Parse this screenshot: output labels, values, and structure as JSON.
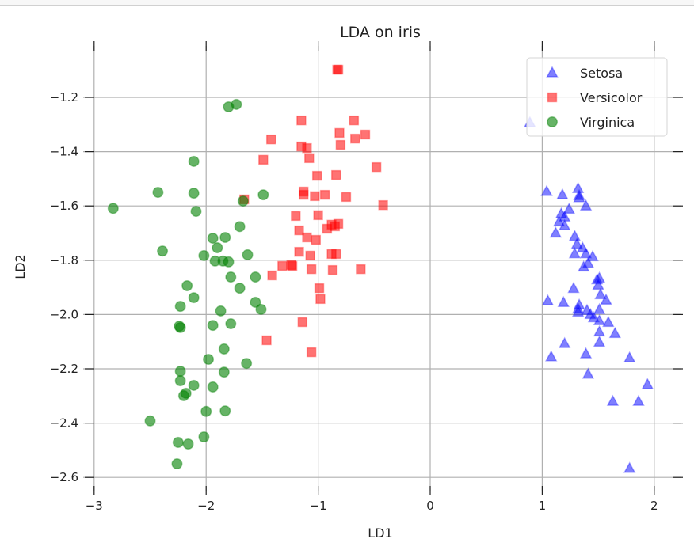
{
  "chart_data": {
    "type": "scatter",
    "title": "LDA on iris",
    "xlabel": "LD1",
    "ylabel": "LD2",
    "xlim": [
      -3.1,
      2.24
    ],
    "ylim": [
      -2.65,
      -1.01
    ],
    "xticks": [
      -3,
      -2,
      -1,
      0,
      1,
      2
    ],
    "xtick_labels": [
      "−3",
      "−2",
      "−1",
      "0",
      "1",
      "2"
    ],
    "yticks": [
      -1.2,
      -1.4,
      -1.6,
      -1.8,
      -2.0,
      -2.2,
      -2.4,
      -2.6
    ],
    "ytick_labels": [
      "−1.2",
      "−1.4",
      "−1.6",
      "−1.8",
      "−2.0",
      "−2.2",
      "−2.4",
      "−2.6"
    ],
    "grid": true,
    "legend_position": "top-right",
    "series": [
      {
        "name": "Setosa",
        "marker": "triangle",
        "color": "#0000ff",
        "alpha": 0.5,
        "points": [
          [
            1.04,
            -1.547
          ],
          [
            1.18,
            -1.559
          ],
          [
            1.32,
            -1.536
          ],
          [
            1.33,
            -1.562
          ],
          [
            1.39,
            -1.6
          ],
          [
            1.17,
            -1.629
          ],
          [
            1.24,
            -1.612
          ],
          [
            1.2,
            -1.641
          ],
          [
            1.15,
            -1.659
          ],
          [
            1.2,
            -1.673
          ],
          [
            1.12,
            -1.7
          ],
          [
            1.29,
            -1.712
          ],
          [
            1.31,
            -1.741
          ],
          [
            1.36,
            -1.755
          ],
          [
            1.39,
            -1.776
          ],
          [
            1.45,
            -1.787
          ],
          [
            1.29,
            -1.776
          ],
          [
            1.41,
            -1.811
          ],
          [
            1.37,
            -1.825
          ],
          [
            1.51,
            -1.866
          ],
          [
            1.49,
            -1.872
          ],
          [
            1.5,
            -1.892
          ],
          [
            1.28,
            -1.904
          ],
          [
            1.52,
            -1.927
          ],
          [
            1.05,
            -1.95
          ],
          [
            1.19,
            -1.956
          ],
          [
            1.33,
            -1.965
          ],
          [
            1.32,
            -1.991
          ],
          [
            1.57,
            -1.947
          ],
          [
            1.51,
            -1.982
          ],
          [
            1.4,
            -1.985
          ],
          [
            1.43,
            -2.0
          ],
          [
            1.46,
            -2.012
          ],
          [
            1.51,
            -2.023
          ],
          [
            1.59,
            -2.029
          ],
          [
            1.51,
            -2.064
          ],
          [
            1.2,
            -2.107
          ],
          [
            1.39,
            -2.145
          ],
          [
            1.51,
            -2.102
          ],
          [
            1.65,
            -2.07
          ],
          [
            1.08,
            -2.156
          ],
          [
            1.78,
            -2.16
          ],
          [
            1.41,
            -2.22
          ],
          [
            1.94,
            -2.258
          ],
          [
            1.63,
            -2.32
          ],
          [
            1.86,
            -2.32
          ],
          [
            1.78,
            -2.567
          ],
          [
            0.89,
            -1.293
          ],
          [
            1.33,
            -1.57
          ],
          [
            1.32,
            -1.98
          ]
        ]
      },
      {
        "name": "Versicolor",
        "marker": "square",
        "color": "#ff0000",
        "alpha": 0.55,
        "points": [
          [
            -0.82,
            -1.098
          ],
          [
            -0.83,
            -1.098
          ],
          [
            -1.15,
            -1.285
          ],
          [
            -0.68,
            -1.285
          ],
          [
            -0.81,
            -1.331
          ],
          [
            -0.58,
            -1.337
          ],
          [
            -1.15,
            -1.381
          ],
          [
            -0.8,
            -1.375
          ],
          [
            -0.67,
            -1.352
          ],
          [
            -1.1,
            -1.387
          ],
          [
            -1.49,
            -1.43
          ],
          [
            -1.08,
            -1.424
          ],
          [
            -0.48,
            -1.457
          ],
          [
            -1.01,
            -1.489
          ],
          [
            -1.42,
            -1.355
          ],
          [
            -0.84,
            -1.486
          ],
          [
            -0.94,
            -1.559
          ],
          [
            -1.13,
            -1.547
          ],
          [
            -1.13,
            -1.559
          ],
          [
            -1.03,
            -1.564
          ],
          [
            -0.75,
            -1.567
          ],
          [
            -0.42,
            -1.597
          ],
          [
            -1.66,
            -1.576
          ],
          [
            -1.2,
            -1.637
          ],
          [
            -1.17,
            -1.69
          ],
          [
            -1.0,
            -1.634
          ],
          [
            -0.92,
            -1.684
          ],
          [
            -0.82,
            -1.666
          ],
          [
            -0.88,
            -1.669
          ],
          [
            -0.85,
            -1.675
          ],
          [
            -1.1,
            -1.716
          ],
          [
            -1.02,
            -1.725
          ],
          [
            -1.17,
            -1.769
          ],
          [
            -1.24,
            -1.818
          ],
          [
            -1.23,
            -1.821
          ],
          [
            -1.07,
            -1.783
          ],
          [
            -0.88,
            -1.777
          ],
          [
            -0.84,
            -1.777
          ],
          [
            -1.06,
            -1.833
          ],
          [
            -0.87,
            -1.836
          ],
          [
            -0.62,
            -1.833
          ],
          [
            -1.41,
            -1.856
          ],
          [
            -0.99,
            -1.903
          ],
          [
            -0.98,
            -1.943
          ],
          [
            -1.14,
            -2.028
          ],
          [
            -1.46,
            -2.095
          ],
          [
            -1.06,
            -2.139
          ],
          [
            -1.32,
            -1.821
          ]
        ]
      },
      {
        "name": "Virginica",
        "marker": "circle",
        "color": "#008000",
        "alpha": 0.6,
        "points": [
          [
            -1.8,
            -1.235
          ],
          [
            -1.73,
            -1.226
          ],
          [
            -2.11,
            -1.436
          ],
          [
            -2.43,
            -1.55
          ],
          [
            -2.11,
            -1.553
          ],
          [
            -2.83,
            -1.609
          ],
          [
            -2.09,
            -1.62
          ],
          [
            -1.7,
            -1.676
          ],
          [
            -1.94,
            -1.719
          ],
          [
            -1.83,
            -1.716
          ],
          [
            -1.9,
            -1.754
          ],
          [
            -2.39,
            -1.766
          ],
          [
            -2.02,
            -1.783
          ],
          [
            -1.63,
            -1.78
          ],
          [
            -1.92,
            -1.803
          ],
          [
            -1.85,
            -1.803
          ],
          [
            -1.8,
            -1.806
          ],
          [
            -1.78,
            -1.862
          ],
          [
            -1.56,
            -1.862
          ],
          [
            -2.17,
            -1.894
          ],
          [
            -1.7,
            -1.903
          ],
          [
            -2.11,
            -1.938
          ],
          [
            -1.56,
            -1.955
          ],
          [
            -1.51,
            -1.981
          ],
          [
            -2.23,
            -1.97
          ],
          [
            -1.87,
            -1.987
          ],
          [
            -2.24,
            -2.043
          ],
          [
            -2.23,
            -2.048
          ],
          [
            -1.94,
            -2.04
          ],
          [
            -1.78,
            -2.034
          ],
          [
            -1.84,
            -2.127
          ],
          [
            -1.98,
            -2.165
          ],
          [
            -1.64,
            -2.18
          ],
          [
            -2.23,
            -2.209
          ],
          [
            -1.84,
            -2.212
          ],
          [
            -2.23,
            -2.244
          ],
          [
            -2.11,
            -2.261
          ],
          [
            -1.94,
            -2.267
          ],
          [
            -2.2,
            -2.299
          ],
          [
            -2.18,
            -2.29
          ],
          [
            -2.0,
            -2.357
          ],
          [
            -1.83,
            -2.355
          ],
          [
            -2.5,
            -2.392
          ],
          [
            -2.02,
            -2.451
          ],
          [
            -2.25,
            -2.471
          ],
          [
            -2.16,
            -2.477
          ],
          [
            -2.26,
            -2.55
          ],
          [
            -1.67,
            -1.582
          ],
          [
            -1.49,
            -1.559
          ]
        ]
      }
    ]
  }
}
